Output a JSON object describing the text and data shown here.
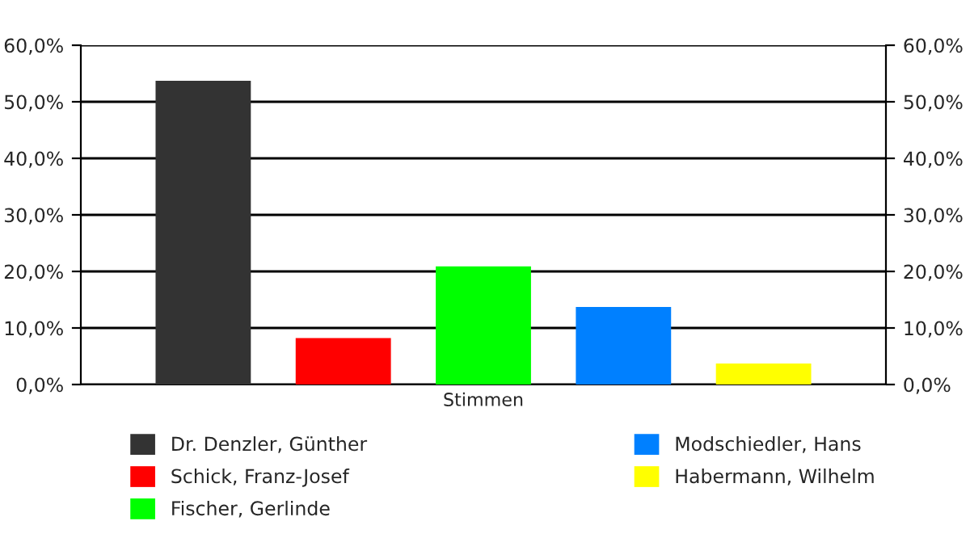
{
  "chart_data": {
    "type": "bar",
    "categories": [
      "Stimmen"
    ],
    "series": [
      {
        "name": "Dr. Denzler, Günther",
        "color": "#333333",
        "values": [
          53.7
        ]
      },
      {
        "name": "Schick, Franz-Josef",
        "color": "#ff0000",
        "values": [
          8.2
        ]
      },
      {
        "name": "Fischer, Gerlinde",
        "color": "#00ff00",
        "values": [
          20.9
        ]
      },
      {
        "name": "Modschiedler, Hans",
        "color": "#0080ff",
        "values": [
          13.7
        ]
      },
      {
        "name": "Habermann, Wilhelm",
        "color": "#ffff00",
        "values": [
          3.7
        ]
      }
    ],
    "ylim": [
      0,
      60
    ],
    "yticks": [
      {
        "value": 0,
        "label": "0,0%"
      },
      {
        "value": 10,
        "label": "10,0%"
      },
      {
        "value": 20,
        "label": "20,0%"
      },
      {
        "value": 30,
        "label": "30,0%"
      },
      {
        "value": 40,
        "label": "40,0%"
      },
      {
        "value": 50,
        "label": "50,0%"
      },
      {
        "value": 60,
        "label": "60,0%"
      }
    ],
    "grid": "y",
    "legend": "bottom"
  }
}
